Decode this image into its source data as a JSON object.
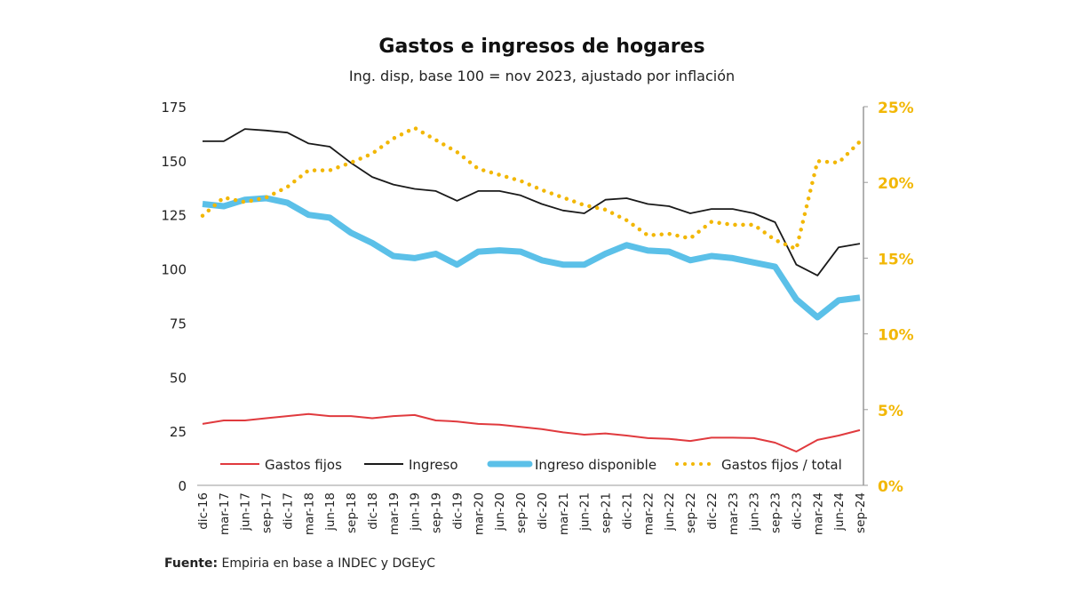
{
  "chart_data": {
    "type": "line",
    "title": "Gastos e ingresos de hogares",
    "subtitle": "Ing. disp, base 100 = nov 2023, ajustado por inflación",
    "source_label": "Fuente:",
    "source_text": " Empiria en base a INDEC y DGEyC",
    "categories": [
      "dic-16",
      "mar-17",
      "jun-17",
      "sep-17",
      "dic-17",
      "mar-18",
      "jun-18",
      "sep-18",
      "dic-18",
      "mar-19",
      "jun-19",
      "sep-19",
      "dic-19",
      "mar-20",
      "jun-20",
      "sep-20",
      "dic-20",
      "mar-21",
      "jun-21",
      "sep-21",
      "dic-21",
      "mar-22",
      "jun-22",
      "sep-22",
      "dic-22",
      "mar-23",
      "jun-23",
      "sep-23",
      "dic-23",
      "mar-24",
      "jun-24",
      "sep-24"
    ],
    "y_left": {
      "ticks": [
        "0",
        "25",
        "50",
        "75",
        "100",
        "125",
        "150",
        "175"
      ],
      "range": [
        0,
        175
      ]
    },
    "y_right": {
      "ticks": [
        "0%",
        "5%",
        "10%",
        "15%",
        "20%",
        "25%"
      ],
      "range": [
        0,
        25
      ]
    },
    "legend_position": "bottom-inside",
    "grid": false,
    "series": [
      {
        "name": "Gastos fijos",
        "axis": "left",
        "color": "#e03a3e",
        "style": "solid",
        "values": [
          28.4,
          30,
          30,
          31,
          32,
          33,
          32,
          32,
          31,
          32,
          32.5,
          30,
          29.5,
          28.4,
          28,
          27,
          26,
          24.5,
          23.4,
          24,
          23,
          21.8,
          21.5,
          20.5,
          22,
          22,
          21.8,
          19.7,
          15.6,
          21,
          23,
          25.5
        ]
      },
      {
        "name": "Ingreso",
        "axis": "left",
        "color": "#1a1a1a",
        "style": "solid",
        "values": [
          159,
          159,
          164.7,
          164,
          163,
          158,
          156.5,
          149,
          142.5,
          139,
          137,
          136,
          131.5,
          136,
          136,
          134,
          130,
          127,
          125.7,
          132,
          132.7,
          130,
          129,
          125.7,
          127.7,
          127.7,
          125.7,
          121.6,
          102,
          97,
          110,
          111.7
        ]
      },
      {
        "name": "Ingreso disponible",
        "axis": "left",
        "color": "#5bc0e8",
        "style": "thick",
        "values": [
          130,
          129,
          132,
          132.7,
          130.6,
          125,
          123.7,
          116.7,
          112,
          106,
          105,
          107,
          102,
          108,
          108.6,
          108,
          104,
          102,
          102,
          107,
          111,
          108.5,
          108,
          104,
          106,
          105,
          103,
          101,
          86,
          77.7,
          85.5,
          86.7
        ]
      },
      {
        "name": "Gastos fijos / total",
        "axis": "right",
        "color": "#f2b705",
        "style": "dotted",
        "values": [
          17.8,
          19,
          18.7,
          19,
          19.7,
          20.8,
          20.8,
          21.3,
          21.9,
          22.9,
          23.6,
          22.8,
          22,
          20.9,
          20.5,
          20.1,
          19.5,
          19,
          18.5,
          18.2,
          17.5,
          16.5,
          16.6,
          16.3,
          17.4,
          17.2,
          17.2,
          16.2,
          15.6,
          21.4,
          21.3,
          22.7
        ]
      }
    ]
  }
}
